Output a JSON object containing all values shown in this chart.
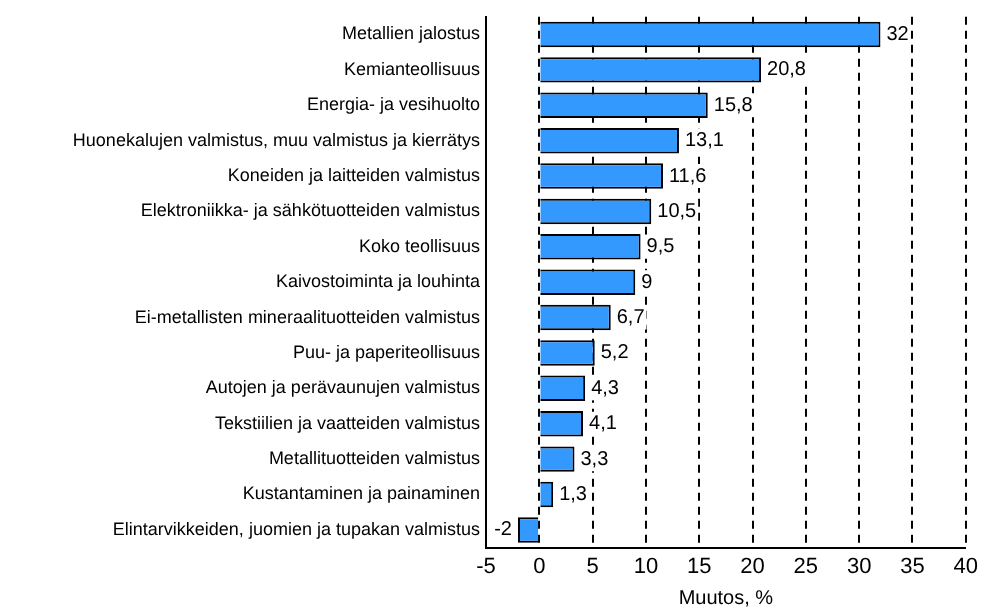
{
  "chart_data": {
    "type": "bar",
    "orientation": "horizontal",
    "xlabel": "Muutos, %",
    "categories": [
      "Metallien jalostus",
      "Kemianteollisuus",
      "Energia- ja vesihuolto",
      "Huonekalujen valmistus, muu valmistus ja kierrätys",
      "Koneiden ja laitteiden valmistus",
      "Elektroniikka- ja sähkötuotteiden valmistus",
      "Koko teollisuus",
      "Kaivostoiminta ja louhinta",
      "Ei-metallisten mineraalituotteiden valmistus",
      "Puu- ja paperiteollisuus",
      "Autojen ja perävaunujen valmistus",
      "Tekstiilien ja vaatteiden valmistus",
      "Metallituotteiden valmistus",
      "Kustantaminen ja painaminen",
      "Elintarvikkeiden, juomien ja tupakan valmistus"
    ],
    "values": [
      32,
      20.8,
      15.8,
      13.1,
      11.6,
      10.5,
      9.5,
      9,
      6.7,
      5.2,
      4.3,
      4.1,
      3.3,
      1.3,
      -2
    ],
    "value_labels": [
      "32",
      "20,8",
      "15,8",
      "13,1",
      "11,6",
      "10,5",
      "9,5",
      "9",
      "6,7",
      "5,2",
      "4,3",
      "4,1",
      "3,3",
      "1,3",
      "-2"
    ],
    "color": "#3399ff",
    "xlim": [
      -5,
      40
    ],
    "xticks": [
      -5,
      0,
      5,
      10,
      15,
      20,
      25,
      30,
      35,
      40
    ],
    "grid": "x",
    "legend": false
  }
}
